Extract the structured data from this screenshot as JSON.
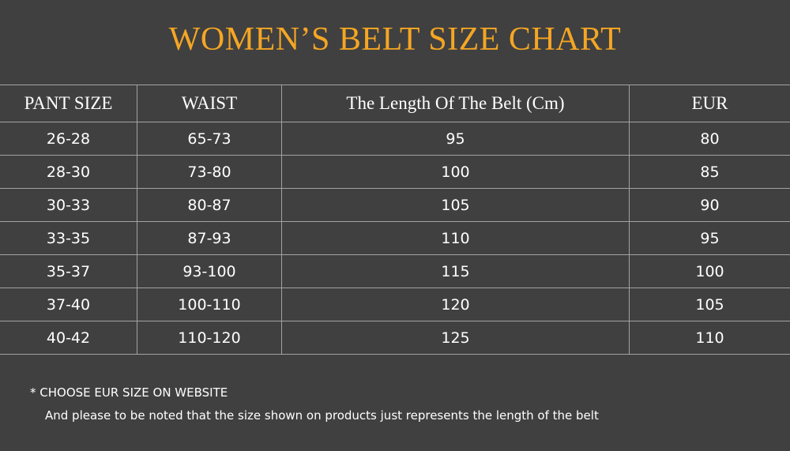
{
  "title": "WOMEN’S BELT SIZE CHART",
  "colors": {
    "background": "#404040",
    "title": "#f5a623",
    "grid": "#a3a3a3",
    "text": "#ffffff"
  },
  "table": {
    "headers": [
      "PANT SIZE",
      "WAIST",
      "The Length Of The Belt (Cm)",
      "EUR"
    ],
    "rows": [
      [
        "26-28",
        "65-73",
        "95",
        "80"
      ],
      [
        "28-30",
        "73-80",
        "100",
        "85"
      ],
      [
        "30-33",
        "80-87",
        "105",
        "90"
      ],
      [
        "33-35",
        "87-93",
        "110",
        "95"
      ],
      [
        "35-37",
        "93-100",
        "115",
        "100"
      ],
      [
        "37-40",
        "100-110",
        "120",
        "105"
      ],
      [
        "40-42",
        "110-120",
        "125",
        "110"
      ]
    ]
  },
  "notes": {
    "line1": "*  CHOOSE EUR SIZE ON WEBSITE",
    "line2": "And please to be noted that the size shown on products just represents the length of the belt"
  }
}
